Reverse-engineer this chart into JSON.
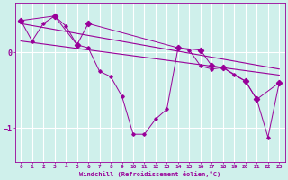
{
  "xlabel": "Windchill (Refroidissement éolien,°C)",
  "bg_color": "#cff0eb",
  "line_color": "#990099",
  "grid_color": "#ffffff",
  "xlim": [
    -0.5,
    23.5
  ],
  "ylim": [
    -1.45,
    0.65
  ],
  "yticks": [
    0,
    -1
  ],
  "xticks": [
    0,
    1,
    2,
    3,
    4,
    5,
    6,
    7,
    8,
    9,
    10,
    11,
    12,
    13,
    14,
    15,
    16,
    17,
    18,
    19,
    20,
    21,
    22,
    23
  ],
  "series1_x": [
    0,
    1,
    2,
    3,
    4,
    5,
    6,
    7,
    8,
    9,
    10,
    11,
    12,
    13,
    14,
    15,
    16,
    17,
    18,
    19,
    20,
    21,
    22,
    23
  ],
  "series1_y": [
    0.42,
    0.15,
    0.38,
    0.48,
    0.35,
    0.1,
    0.06,
    -0.25,
    -0.32,
    -0.58,
    -1.08,
    -1.08,
    -0.88,
    -0.75,
    0.06,
    0.03,
    -0.18,
    -0.22,
    -0.2,
    -0.3,
    -0.38,
    -0.62,
    -1.12,
    -0.4
  ],
  "series2_x": [
    0,
    3,
    5,
    6,
    14,
    16,
    17,
    18,
    20,
    21,
    23
  ],
  "series2_y": [
    0.42,
    0.48,
    0.1,
    0.38,
    0.06,
    0.03,
    -0.18,
    -0.2,
    -0.38,
    -0.62,
    -0.4
  ],
  "trend1_x": [
    0,
    23
  ],
  "trend1_y": [
    0.38,
    -0.22
  ],
  "trend2_x": [
    0,
    23
  ],
  "trend2_y": [
    0.15,
    -0.3
  ]
}
